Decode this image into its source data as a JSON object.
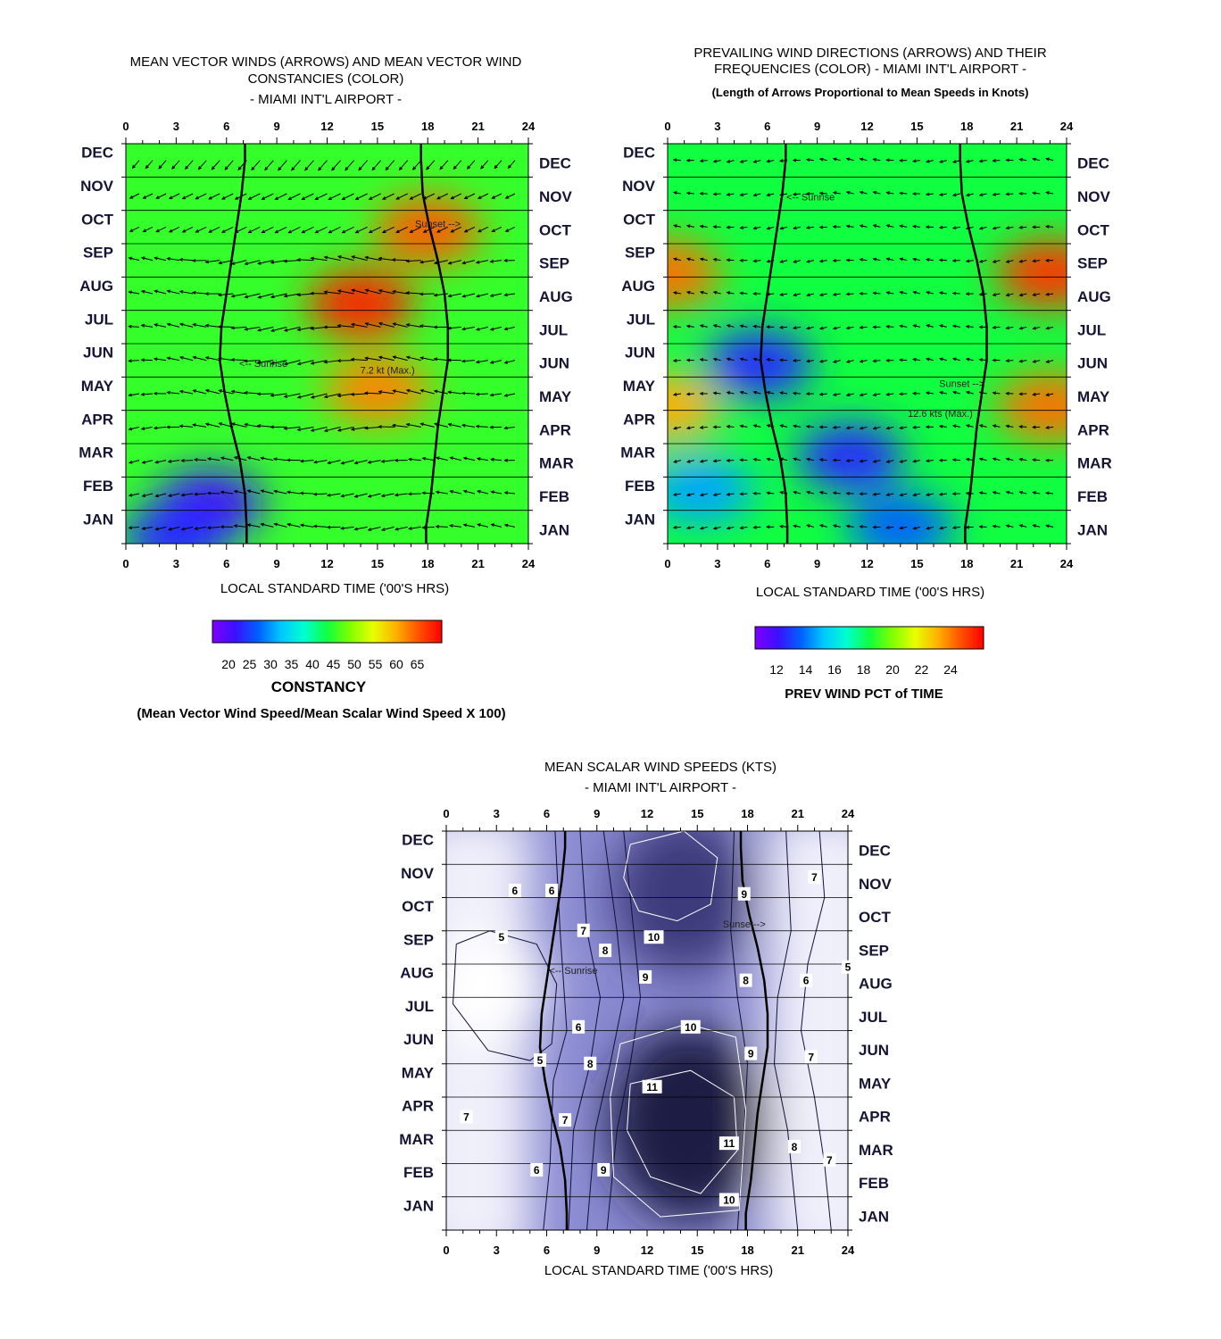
{
  "panels": {
    "constancy": {
      "title_lines": [
        "MEAN VECTOR WINDS (ARROWS) AND MEAN VECTOR WIND",
        "CONSTANCIES (COLOR)",
        "- MIAMI INT'L AIRPORT -"
      ],
      "xlabel": "LOCAL STANDARD TIME ('00'S HRS)",
      "annotations": {
        "sunset": "Sunset -->",
        "sunrise": "<-- Sunrise",
        "max": "7.2 kt (Max.)"
      },
      "colorbar": {
        "ticks": [
          "20",
          "25",
          "30",
          "35",
          "40",
          "45",
          "50",
          "55",
          "60",
          "65"
        ],
        "title": "CONSTANCY",
        "note": "(Mean Vector Wind Speed/Mean Scalar Wind Speed X 100)"
      }
    },
    "prevailing": {
      "title_lines": [
        "PREVAILING WIND DIRECTIONS (ARROWS) AND THEIR",
        "FREQUENCIES (COLOR) - MIAMI INT'L AIRPORT -"
      ],
      "subtitle": "(Length of Arrows Proportional to Mean Speeds in Knots)",
      "xlabel": "LOCAL STANDARD TIME ('00'S HRS)",
      "annotations": {
        "sunset": "Sunset -->",
        "sunrise": "<-- Sunrise",
        "max": "12.6 kts (Max.)"
      },
      "colorbar": {
        "ticks": [
          "12",
          "14",
          "16",
          "18",
          "20",
          "22",
          "24"
        ],
        "title": "PREV WIND PCT of TIME"
      }
    },
    "scalar": {
      "title_lines": [
        "MEAN SCALAR WIND SPEEDS (KTS)",
        "- MIAMI INT'L AIRPORT -"
      ],
      "xlabel": "LOCAL STANDARD TIME ('00'S HRS)",
      "annotations": {
        "sunset": "Sunset-->",
        "sunrise": "<-- Sunrise"
      }
    }
  },
  "chart_data": [
    {
      "type": "heatmap",
      "title": "MEAN VECTOR WINDS (ARROWS) AND MEAN VECTOR WIND CONSTANCIES (COLOR) - MIAMI INT'L AIRPORT -",
      "xlabel": "LOCAL STANDARD TIME ('00'S HRS)",
      "x_ticks": [
        "0",
        "3",
        "6",
        "9",
        "12",
        "15",
        "18",
        "21",
        "24"
      ],
      "y_categories": [
        "JAN",
        "FEB",
        "MAR",
        "APR",
        "MAY",
        "JUN",
        "JUL",
        "AUG",
        "SEP",
        "OCT",
        "NOV",
        "DEC"
      ],
      "xlim": [
        0,
        24
      ],
      "colorbar_range": [
        20,
        65
      ],
      "sunrise_hours": [
        7.2,
        7.1,
        6.8,
        6.3,
        5.9,
        5.6,
        5.7,
        6.0,
        6.3,
        6.6,
        6.9,
        7.1
      ],
      "sunset_hours": [
        17.9,
        18.2,
        18.4,
        18.6,
        18.9,
        19.2,
        19.2,
        19.0,
        18.6,
        18.1,
        17.7,
        17.6
      ],
      "max_annotation": "7.2 kt (Max.)",
      "blobs": [
        {
          "hour": 14,
          "month": 7.2,
          "value": 63
        },
        {
          "hour": 15,
          "month": 4.6,
          "value": 58
        },
        {
          "hour": 18,
          "month": 9.4,
          "value": 60
        },
        {
          "hour": 5,
          "month": 1.2,
          "value": 24
        },
        {
          "hour": 3,
          "month": 0.2,
          "value": 26
        }
      ],
      "base_value": 44
    },
    {
      "type": "heatmap",
      "title": "PREVAILING WIND DIRECTIONS (ARROWS) AND THEIR FREQUENCIES (COLOR) - MIAMI INT'L AIRPORT -",
      "xlabel": "LOCAL STANDARD TIME ('00'S HRS)",
      "x_ticks": [
        "0",
        "3",
        "6",
        "9",
        "12",
        "15",
        "18",
        "21",
        "24"
      ],
      "y_categories": [
        "JAN",
        "FEB",
        "MAR",
        "APR",
        "MAY",
        "JUN",
        "JUL",
        "AUG",
        "SEP",
        "OCT",
        "NOV",
        "DEC"
      ],
      "xlim": [
        0,
        24
      ],
      "colorbar_range": [
        11,
        26
      ],
      "sunrise_hours": [
        7.2,
        7.1,
        6.8,
        6.3,
        5.9,
        5.6,
        5.7,
        6.0,
        6.3,
        6.6,
        6.9,
        7.1
      ],
      "sunset_hours": [
        17.9,
        18.2,
        18.4,
        18.6,
        18.9,
        19.2,
        19.2,
        19.0,
        18.6,
        18.1,
        17.7,
        17.6
      ],
      "max_annotation": "12.6 kts (Max.)",
      "blobs": [
        {
          "hour": 23,
          "month": 8.1,
          "value": 25
        },
        {
          "hour": 23,
          "month": 4.1,
          "value": 24
        },
        {
          "hour": 0,
          "month": 8.1,
          "value": 24
        },
        {
          "hour": 0,
          "month": 4.1,
          "value": 23
        },
        {
          "hour": 5.5,
          "month": 5.4,
          "value": 13
        },
        {
          "hour": 11,
          "month": 2.6,
          "value": 13
        },
        {
          "hour": 14,
          "month": 0.5,
          "value": 14
        },
        {
          "hour": 2,
          "month": 1.6,
          "value": 15
        }
      ],
      "base_value": 18.5
    },
    {
      "type": "contour",
      "title": "MEAN SCALAR WIND SPEEDS (KTS) - MIAMI INT'L AIRPORT -",
      "xlabel": "LOCAL STANDARD TIME ('00'S HRS)",
      "x_ticks": [
        "0",
        "3",
        "6",
        "9",
        "12",
        "15",
        "18",
        "21",
        "24"
      ],
      "y_categories": [
        "JAN",
        "FEB",
        "MAR",
        "APR",
        "MAY",
        "JUN",
        "JUL",
        "AUG",
        "SEP",
        "OCT",
        "NOV",
        "DEC"
      ],
      "xlim": [
        0,
        24
      ],
      "contour_levels": [
        5,
        6,
        7,
        8,
        9,
        10,
        11
      ],
      "sunrise_hours": [
        7.2,
        7.1,
        6.8,
        6.3,
        5.9,
        5.6,
        5.7,
        6.0,
        6.3,
        6.6,
        6.9,
        7.1
      ],
      "sunset_hours": [
        17.9,
        18.2,
        18.4,
        18.6,
        18.9,
        19.2,
        19.2,
        19.0,
        18.6,
        18.1,
        17.7,
        17.6
      ],
      "contour_labels": [
        {
          "text": "6",
          "hour": 4.1,
          "month": 10.2
        },
        {
          "text": "6",
          "hour": 6.3,
          "month": 10.2
        },
        {
          "text": "7",
          "hour": 22,
          "month": 10.6
        },
        {
          "text": "9",
          "hour": 17.8,
          "month": 10.1
        },
        {
          "text": "7",
          "hour": 8.2,
          "month": 9.0
        },
        {
          "text": "10",
          "hour": 12.4,
          "month": 8.8
        },
        {
          "text": "5",
          "hour": 3.3,
          "month": 8.8
        },
        {
          "text": "8",
          "hour": 9.5,
          "month": 8.4
        },
        {
          "text": "9",
          "hour": 11.9,
          "month": 7.6
        },
        {
          "text": "8",
          "hour": 17.9,
          "month": 7.5
        },
        {
          "text": "6",
          "hour": 21.5,
          "month": 7.5
        },
        {
          "text": "5",
          "hour": 24,
          "month": 7.9
        },
        {
          "text": "6",
          "hour": 7.9,
          "month": 6.1
        },
        {
          "text": "10",
          "hour": 14.6,
          "month": 6.1
        },
        {
          "text": "9",
          "hour": 18.2,
          "month": 5.3
        },
        {
          "text": "7",
          "hour": 21.8,
          "month": 5.2
        },
        {
          "text": "5",
          "hour": 5.6,
          "month": 5.1
        },
        {
          "text": "8",
          "hour": 8.6,
          "month": 5.0
        },
        {
          "text": "11",
          "hour": 12.3,
          "month": 4.3
        },
        {
          "text": "7",
          "hour": 1.2,
          "month": 3.4
        },
        {
          "text": "7",
          "hour": 7.1,
          "month": 3.3
        },
        {
          "text": "11",
          "hour": 16.9,
          "month": 2.6
        },
        {
          "text": "8",
          "hour": 20.8,
          "month": 2.5
        },
        {
          "text": "7",
          "hour": 22.9,
          "month": 2.1
        },
        {
          "text": "6",
          "hour": 5.4,
          "month": 1.8
        },
        {
          "text": "9",
          "hour": 9.4,
          "month": 1.8
        },
        {
          "text": "10",
          "hour": 16.9,
          "month": 0.9
        }
      ]
    }
  ],
  "colors": {
    "rainbow": [
      "#7f00ff",
      "#3a10ff",
      "#0060ff",
      "#00c8ff",
      "#00ffd0",
      "#10ff40",
      "#80ff00",
      "#e8ff00",
      "#ffb000",
      "#ff5000",
      "#ff0000"
    ],
    "scalar_light": "#f0f0fb",
    "scalar_dark": "#1c1a44",
    "scalar_white_zone": "#ffffff"
  }
}
